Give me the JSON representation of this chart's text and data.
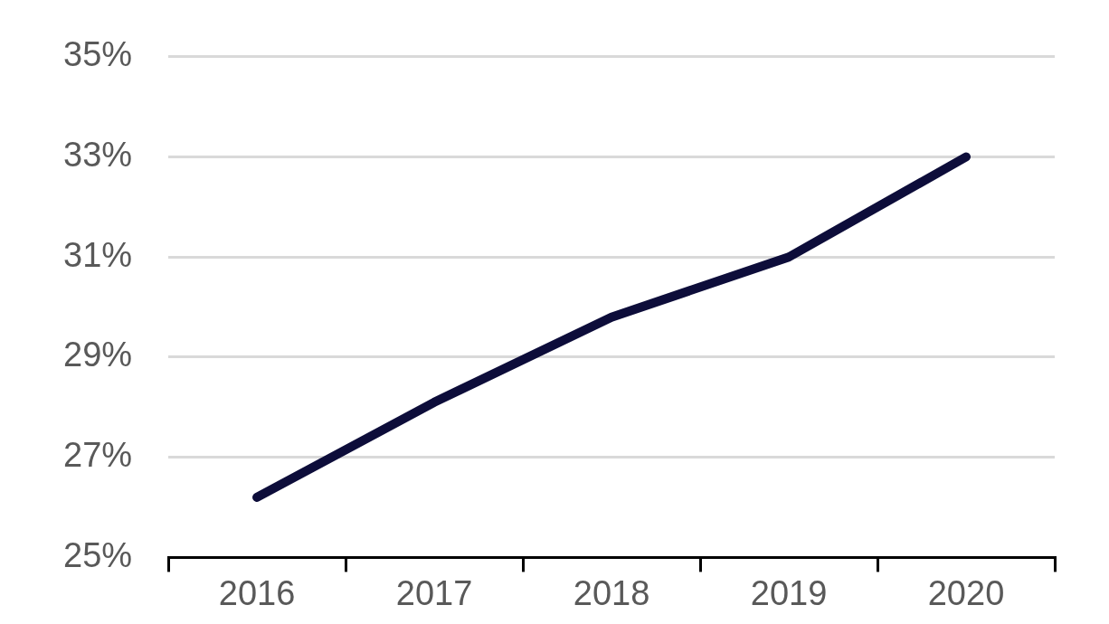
{
  "chart_data": {
    "type": "line",
    "categories": [
      "2016",
      "2017",
      "2018",
      "2019",
      "2020"
    ],
    "series": [
      {
        "color": "#0d0d3a",
        "values": [
          26.2,
          28.1,
          29.8,
          31.0,
          33.0
        ]
      }
    ],
    "ylim": [
      25,
      35
    ],
    "yticks": [
      {
        "value": 25,
        "label": "25%"
      },
      {
        "value": 27,
        "label": "27%"
      },
      {
        "value": 29,
        "label": "29%"
      },
      {
        "value": 31,
        "label": "31%"
      },
      {
        "value": 33,
        "label": "33%"
      },
      {
        "value": 35,
        "label": "35%"
      }
    ],
    "grid": "y",
    "legend": false,
    "marker": "none",
    "line_style": "solid"
  }
}
